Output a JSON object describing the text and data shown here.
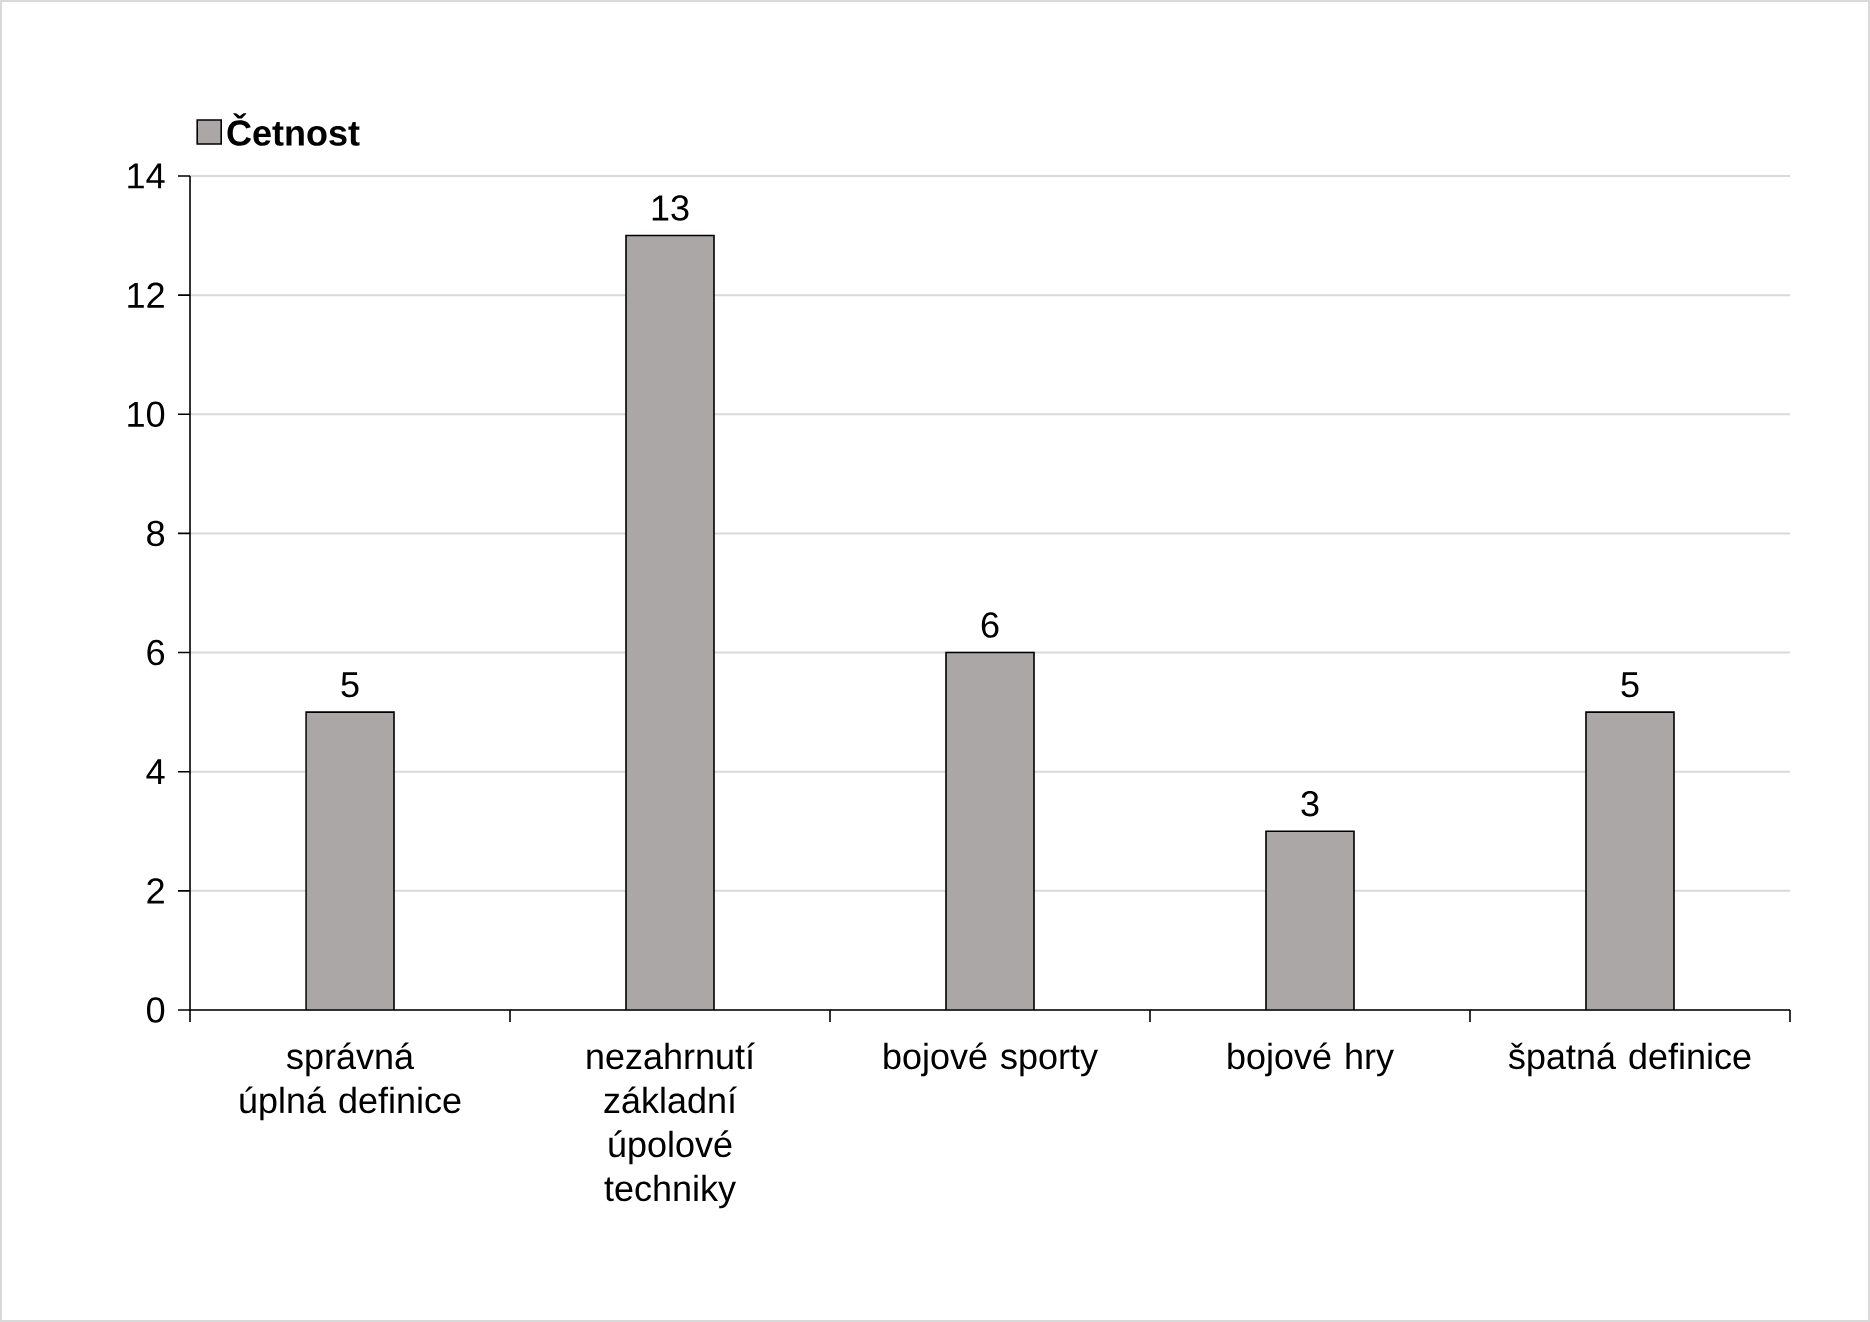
{
  "chart_data": {
    "type": "bar",
    "categories": [
      "správná úplná definice",
      "nezahrnutí základní úpolové techniky",
      "bojové sporty",
      "bojové hry",
      "špatná definice"
    ],
    "series": [
      {
        "name": "Četnost",
        "color": "#aba7a7",
        "values": [
          5,
          13,
          6,
          3,
          5
        ]
      }
    ],
    "ylim": [
      0,
      14
    ],
    "yticks": [
      0,
      2,
      4,
      6,
      8,
      10,
      12,
      14
    ],
    "grid": "y",
    "legend": "top left",
    "data_labels": true
  }
}
